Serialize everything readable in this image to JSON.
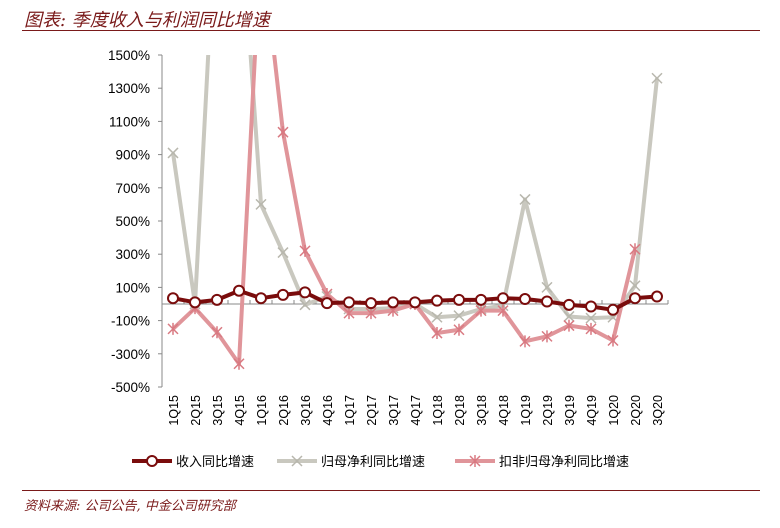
{
  "header": {
    "title": "图表: 季度收入与利润同比增速"
  },
  "footer": {
    "source": "资料来源: 公司公告, 中金公司研究部"
  },
  "chart_data": {
    "type": "line",
    "title": "季度收入与利润同比增速",
    "xlabel": "",
    "ylabel": "",
    "ylim": [
      -500,
      1500
    ],
    "yticks": [
      "1500%",
      "1300%",
      "1100%",
      "900%",
      "700%",
      "500%",
      "300%",
      "100%",
      "-100%",
      "-300%",
      "-500%"
    ],
    "grid": false,
    "legend_position": "bottom",
    "categories": [
      "1Q15",
      "2Q15",
      "3Q15",
      "4Q15",
      "1Q16",
      "2Q16",
      "3Q16",
      "4Q16",
      "1Q17",
      "2Q17",
      "3Q17",
      "4Q17",
      "1Q18",
      "2Q18",
      "3Q18",
      "4Q18",
      "1Q19",
      "2Q19",
      "3Q19",
      "4Q19",
      "1Q20",
      "2Q20",
      "3Q20"
    ],
    "series": [
      {
        "name": "收入同比增速",
        "color": "#7a0c0c",
        "marker": "circle",
        "values": [
          35,
          10,
          25,
          80,
          35,
          55,
          70,
          5,
          10,
          5,
          10,
          10,
          20,
          25,
          25,
          35,
          30,
          15,
          -5,
          -15,
          -35,
          35,
          45
        ]
      },
      {
        "name": "归母净利同比增速",
        "color": "#c9c8bf",
        "marker": "x",
        "values": [
          910,
          0,
          2500,
          2500,
          600,
          310,
          -5,
          45,
          -30,
          -30,
          -25,
          0,
          -80,
          -70,
          -30,
          -10,
          630,
          100,
          -75,
          -85,
          -80,
          110,
          1360
        ]
      },
      {
        "name": "扣非归母净利同比增速",
        "color": "#e0959a",
        "marker": "asterisk",
        "values": [
          -150,
          -25,
          -170,
          -360,
          2200,
          1035,
          320,
          60,
          -55,
          -55,
          -40,
          0,
          -175,
          -155,
          -40,
          -40,
          -225,
          -195,
          -130,
          -150,
          -220,
          330,
          null
        ]
      }
    ]
  }
}
